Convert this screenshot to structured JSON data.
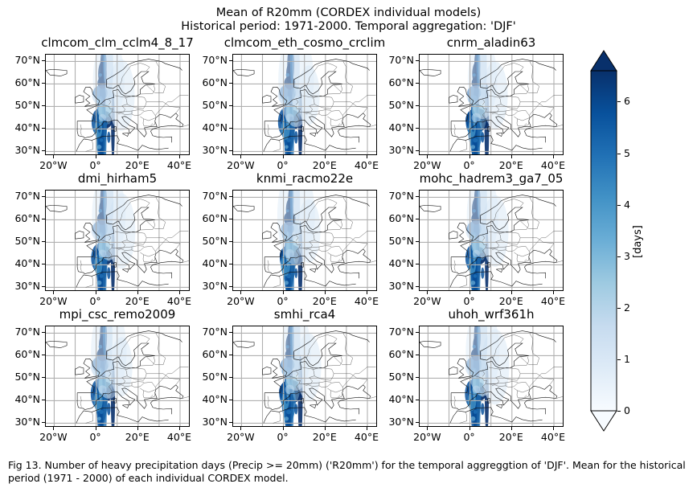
{
  "figure": {
    "title_line1": "Mean of R20mm (CORDEX individual models)",
    "title_line2": "Historical period: 1971-2000. Temporal aggregation: 'DJF'",
    "caption": " Fig 13. Number of heavy precipitation days (Precip >= 20mm) ('R20mm') for the temporal aggreggtion of 'DJF'. Mean for the historical period (1971 - 2000) of each individual CORDEX model."
  },
  "panels": [
    {
      "title": "clmcom_clm_cclm4_8_17"
    },
    {
      "title": "clmcom_eth_cosmo_crclim"
    },
    {
      "title": "cnrm_aladin63"
    },
    {
      "title": "dmi_hirham5"
    },
    {
      "title": "knmi_racmo22e"
    },
    {
      "title": "mohc_hadrem3_ga7_05"
    },
    {
      "title": "mpi_csc_remo2009"
    },
    {
      "title": "smhi_rca4"
    },
    {
      "title": "uhoh_wrf361h"
    }
  ],
  "axes": {
    "lat_labels": [
      "70°N",
      "60°N",
      "50°N",
      "40°N",
      "30°N"
    ],
    "lon_labels": [
      "20°W",
      "0°",
      "20°E",
      "40°E"
    ],
    "lat_range": [
      28,
      73
    ],
    "lon_range": [
      -24,
      45
    ]
  },
  "colorbar": {
    "label": "[days]",
    "ticks": [
      "0",
      "1",
      "2",
      "3",
      "4",
      "5",
      "6"
    ],
    "range": [
      0,
      6.6
    ],
    "extend": "both",
    "colormap": "Blues",
    "colors": [
      "#f7fbff",
      "#deebf7",
      "#c6dbef",
      "#9ecae1",
      "#6baed6",
      "#4292c6",
      "#2171b5",
      "#08519c",
      "#08306b"
    ]
  }
}
